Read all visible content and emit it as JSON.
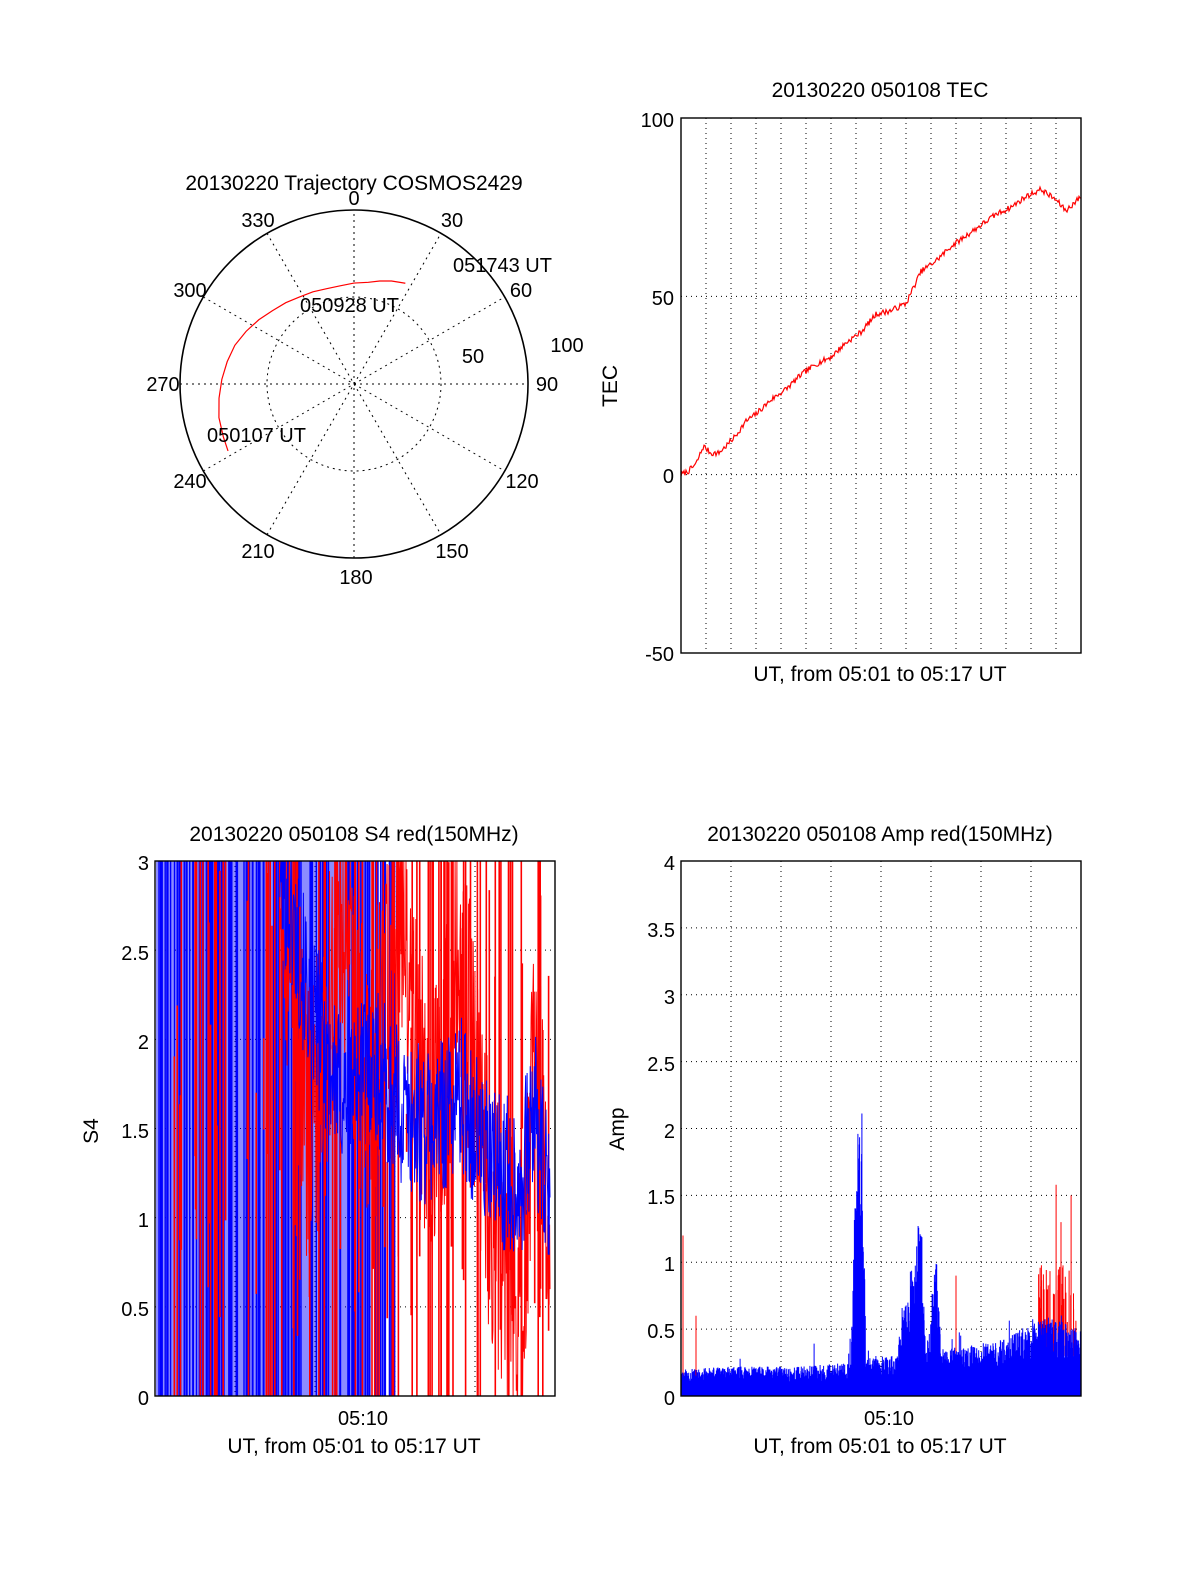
{
  "colors": {
    "red": "#ff0000",
    "blue": "#0000ff",
    "axis": "#000000",
    "grid": "#000000"
  },
  "chart_data": [
    {
      "type": "polar",
      "title": "20130220 Trajectory COSMOS2429",
      "angle_labels": [
        "0",
        "30",
        "60",
        "90",
        "120",
        "150",
        "180",
        "210",
        "240",
        "270",
        "300",
        "330"
      ],
      "radius_labels": [
        "50",
        "100"
      ],
      "rlim": [
        0,
        100
      ],
      "series": [
        {
          "color": "red",
          "points": [
            {
              "az": 242,
              "el": 18
            },
            {
              "az": 248,
              "el": 19
            },
            {
              "az": 256,
              "el": 20
            },
            {
              "az": 264,
              "el": 22
            },
            {
              "az": 272,
              "el": 24
            },
            {
              "az": 280,
              "el": 26
            },
            {
              "az": 288,
              "el": 28
            },
            {
              "az": 296,
              "el": 31
            },
            {
              "az": 304,
              "el": 34
            },
            {
              "az": 312,
              "el": 37
            },
            {
              "az": 320,
              "el": 39
            },
            {
              "az": 328,
              "el": 41
            },
            {
              "az": 336,
              "el": 42
            },
            {
              "az": 344,
              "el": 43
            },
            {
              "az": 352,
              "el": 43
            },
            {
              "az": 0,
              "el": 42
            },
            {
              "az": 8,
              "el": 41
            },
            {
              "az": 14,
              "el": 39
            },
            {
              "az": 20,
              "el": 37
            },
            {
              "az": 24,
              "el": 36
            },
            {
              "az": 27,
              "el": 35
            }
          ]
        }
      ],
      "annotations": [
        "050107 UT",
        "050928 UT",
        "051743 UT"
      ]
    },
    {
      "type": "line",
      "title": "20130220 050108 TEC",
      "xlabel": "UT, from 05:01 to 05:17 UT",
      "ylabel": "TEC",
      "ylim": [
        -50,
        100
      ],
      "yticks": [
        "-50",
        "0",
        "50",
        "100"
      ],
      "xlim": [
        5.0167,
        5.2833
      ],
      "grid": true,
      "series": [
        {
          "color": "red",
          "x": [
            5.0167,
            5.0217,
            5.0267,
            5.0317,
            5.0367,
            5.0417,
            5.0467,
            5.0533,
            5.06,
            5.0667,
            5.0767,
            5.0867,
            5.0967,
            5.1067,
            5.1167,
            5.1267,
            5.1367,
            5.1467,
            5.1567,
            5.1667,
            5.1767,
            5.1867,
            5.1967,
            5.2067,
            5.2167,
            5.2267,
            5.2367,
            5.2467,
            5.2567,
            5.2667,
            5.2733,
            5.2833
          ],
          "y": [
            0,
            1,
            3,
            8,
            6,
            6,
            8,
            11,
            15,
            17,
            21,
            24,
            28,
            31,
            33,
            37,
            40,
            45,
            46,
            48,
            57,
            60,
            64,
            67,
            70,
            73,
            75,
            78,
            80,
            77,
            74,
            78
          ]
        }
      ]
    },
    {
      "type": "line",
      "title": "20130220 050108 S4 red(150MHz)",
      "xlabel": "UT, from 05:01 to 05:17 UT",
      "ylabel": "S4",
      "xtick_labels": [
        "05:10"
      ],
      "xtick_values": [
        5.1667
      ],
      "ylim": [
        0,
        3
      ],
      "yticks": [
        "0",
        "0.5",
        "1",
        "1.5",
        "2",
        "2.5",
        "3"
      ],
      "xlim": [
        5.0167,
        5.2833
      ],
      "grid": true,
      "series": [
        {
          "color": "red",
          "description": "noisy",
          "x": [
            5.1,
            5.12,
            5.14,
            5.16,
            5.18,
            5.2,
            5.22,
            5.24,
            5.26,
            5.27,
            5.28
          ],
          "y": [
            3.0,
            1.4,
            2.6,
            1.6,
            2.8,
            1.3,
            2.5,
            1.1,
            0.5,
            1.8,
            1.0
          ]
        },
        {
          "color": "blue",
          "description": "noisy",
          "x": [
            5.1,
            5.12,
            5.14,
            5.16,
            5.18,
            5.2,
            5.22,
            5.24,
            5.26,
            5.27,
            5.28
          ],
          "y": [
            3.0,
            2.2,
            1.7,
            1.9,
            1.6,
            1.5,
            1.7,
            1.3,
            1.2,
            1.6,
            1.0
          ]
        }
      ]
    },
    {
      "type": "line",
      "title": "20130220 050108 Amp red(150MHz)",
      "xlabel": "UT, from 05:01 to 05:17 UT",
      "ylabel": "Amp",
      "xtick_labels": [
        "05:10"
      ],
      "xtick_values": [
        5.1667
      ],
      "ylim": [
        0,
        4
      ],
      "yticks": [
        "0",
        "0.5",
        "1",
        "1.5",
        "2",
        "2.5",
        "3",
        "3.5",
        "4"
      ],
      "xlim": [
        5.0167,
        5.2833
      ],
      "grid": true,
      "series": [
        {
          "color": "blue",
          "description": "noise floor about 0.2 with spikes",
          "x": [
            5.0167,
            5.05,
            5.09,
            5.13,
            5.1333,
            5.1367,
            5.14,
            5.16,
            5.1767,
            5.18,
            5.1867,
            5.19,
            5.2267,
            5.26,
            5.2833
          ],
          "y": [
            0.2,
            0.22,
            0.22,
            0.25,
            1.8,
            2.47,
            0.3,
            0.3,
            1.4,
            0.3,
            1.1,
            0.35,
            0.4,
            0.6,
            0.5
          ]
        },
        {
          "color": "red",
          "description": "mostly hidden, small spikes",
          "x": [
            5.0167,
            5.018,
            5.0267,
            5.1867,
            5.2,
            5.2667,
            5.27,
            5.2767
          ],
          "y": [
            0.3,
            1.2,
            0.6,
            0.7,
            0.9,
            1.58,
            1.3,
            1.5
          ]
        }
      ]
    }
  ]
}
